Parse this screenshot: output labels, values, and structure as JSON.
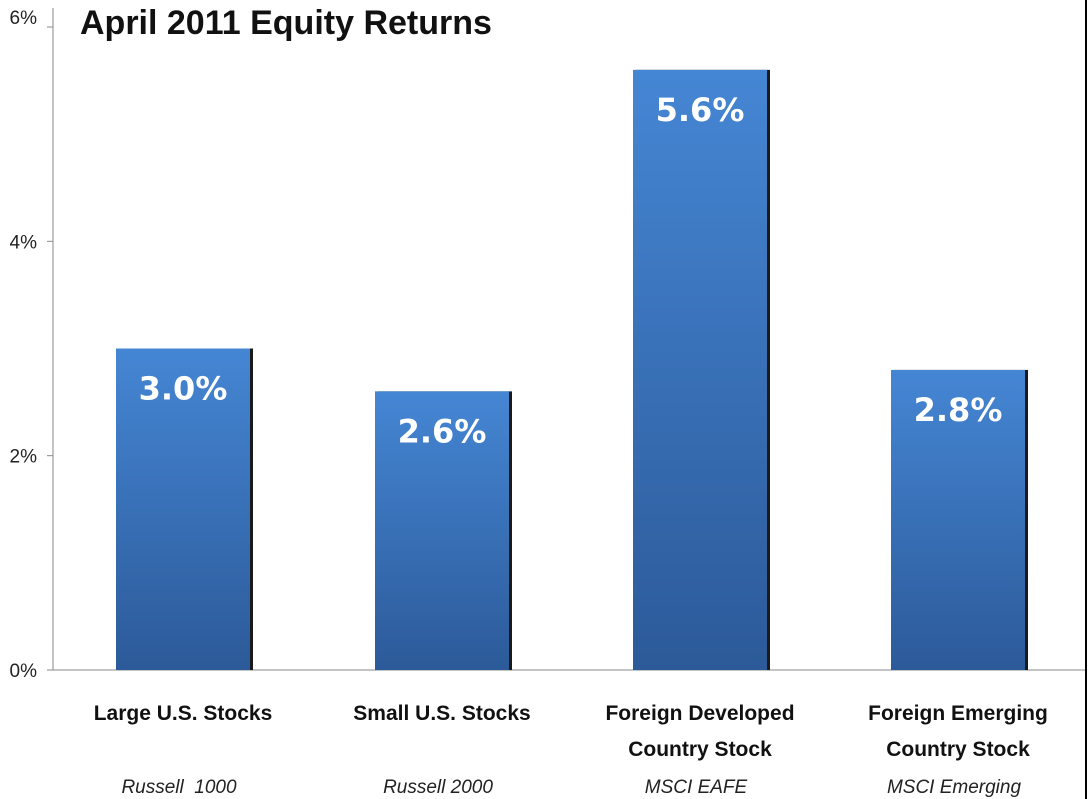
{
  "chart_data": {
    "type": "bar",
    "title": "April 2011 Equity Returns",
    "categories": [
      {
        "label_lines": [
          "Large U.S. Stocks"
        ],
        "sub_label": "Russell  1000"
      },
      {
        "label_lines": [
          "Small U.S. Stocks"
        ],
        "sub_label": "Russell 2000"
      },
      {
        "label_lines": [
          "Foreign Developed",
          "Country Stock"
        ],
        "sub_label": "MSCI EAFE"
      },
      {
        "label_lines": [
          "Foreign Emerging",
          "Country Stock"
        ],
        "sub_label": "MSCI Emerging"
      }
    ],
    "values": [
      3.0,
      2.6,
      5.6,
      2.8
    ],
    "value_labels": [
      "3.0%",
      "2.6%",
      "5.6%",
      "2.8%"
    ],
    "ylim": [
      0,
      6
    ],
    "y_ticks": [
      {
        "value": 0,
        "label": "0%"
      },
      {
        "value": 2,
        "label": "2%"
      },
      {
        "value": 4,
        "label": "4%"
      },
      {
        "value": 6,
        "label": "6%"
      }
    ],
    "grid": false,
    "legend": "none",
    "colors": {
      "bar_top": "#4586d4",
      "bar_bottom": "#2c5a99",
      "bar_shadow": "#1a1a1a"
    }
  }
}
